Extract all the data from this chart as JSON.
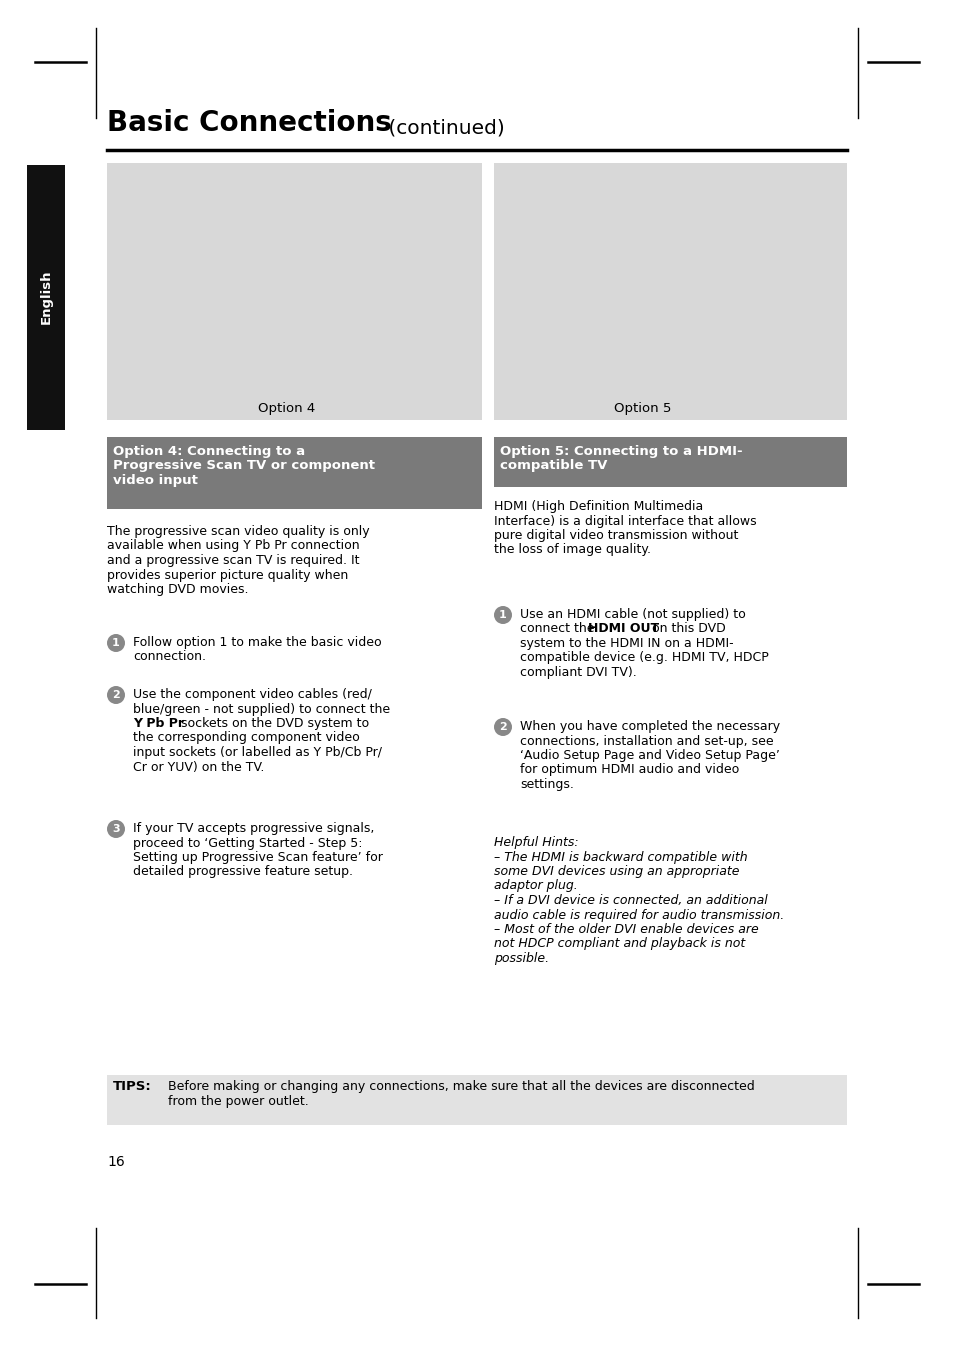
{
  "bg_color": "#ffffff",
  "title_bold": "Basic Connections",
  "title_cont": " (continued)",
  "tab_text": "English",
  "tab_bg": "#111111",
  "tab_fg": "#ffffff",
  "img_box_color": "#d8d8d8",
  "header_box_color": "#7a7a7a",
  "header_fg": "#ffffff",
  "tips_box_color": "#e2e2e2",
  "bullet_bg": "#888888",
  "bullet_fg": "#ffffff",
  "option4_header_line1": "Option 4: Connecting to a",
  "option4_header_line2": "Progressive Scan TV or component",
  "option4_header_line3": "video input",
  "option5_header_line1": "Option 5: Connecting to a HDMI-",
  "option5_header_line2": "compatible TV",
  "option4_label": "Option 4",
  "option5_label": "Option 5",
  "option4_intro_line1": "The progressive scan video quality is only",
  "option4_intro_line2": "available when using Y Pb Pr connection",
  "option4_intro_line3": "and a progressive scan TV is required. It",
  "option4_intro_line4": "provides superior picture quality when",
  "option4_intro_line5": "watching DVD movies.",
  "option5_intro_line1": "HDMI (High Definition Multimedia",
  "option5_intro_line2": "Interface) is a digital interface that allows",
  "option5_intro_line3": "pure digital video transmission without",
  "option5_intro_line4": "the loss of image quality.",
  "opt4_s1_line1": "Follow option 1 to make the basic video",
  "opt4_s1_line2": "connection.",
  "opt4_s2_line1": "Use the component video cables (red/",
  "opt4_s2_line2": "blue/green - not supplied) to connect the",
  "opt4_s2_bold": "Y Pb Pr",
  "opt4_s2_line3b": " sockets on the DVD system to",
  "opt4_s2_line4": "the corresponding component video",
  "opt4_s2_line5": "input sockets (or labelled as Y Pb/Cb Pr/",
  "opt4_s2_line6": "Cr or YUV) on the TV.",
  "opt4_s3_line1": "If your TV accepts progressive signals,",
  "opt4_s3_line2": "proceed to ‘Getting Started - Step 5:",
  "opt4_s3_line3": "Setting up Progressive Scan feature’ for",
  "opt4_s3_line4": "detailed progressive feature setup.",
  "opt5_s1_line1": "Use an HDMI cable (not supplied) to",
  "opt5_s1_line2a": "connect the ",
  "opt5_s1_bold": "HDMI OUT",
  "opt5_s1_line2b": " on this DVD",
  "opt5_s1_line3": "system to the HDMI IN on a HDMI-",
  "opt5_s1_line4": "compatible device (e.g. HDMI TV, HDCP",
  "opt5_s1_line5": "compliant DVI TV).",
  "opt5_s2_line1": "When you have completed the necessary",
  "opt5_s2_line2": "connections, installation and set-up, see",
  "opt5_s2_line3": "‘Audio Setup Page and Video Setup Page’",
  "opt5_s2_line4": "for optimum HDMI audio and video",
  "opt5_s2_line5": "settings.",
  "hints_title": "Helpful Hints:",
  "hints_l1": "– The HDMI is backward compatible with",
  "hints_l2": "some DVI devices using an appropriate",
  "hints_l3": "adaptor plug.",
  "hints_l4": "– If a DVI device is connected, an additional",
  "hints_l5": "audio cable is required for audio transmission.",
  "hints_l6": "– Most of the older DVI enable devices are",
  "hints_l7": "not HDCP compliant and playback is not",
  "hints_l8": "possible.",
  "tips_bold": "TIPS:",
  "tips_l1": "Before making or changing any connections, make sure that all the devices are disconnected",
  "tips_l2": "from the power outlet.",
  "page_num": "16"
}
